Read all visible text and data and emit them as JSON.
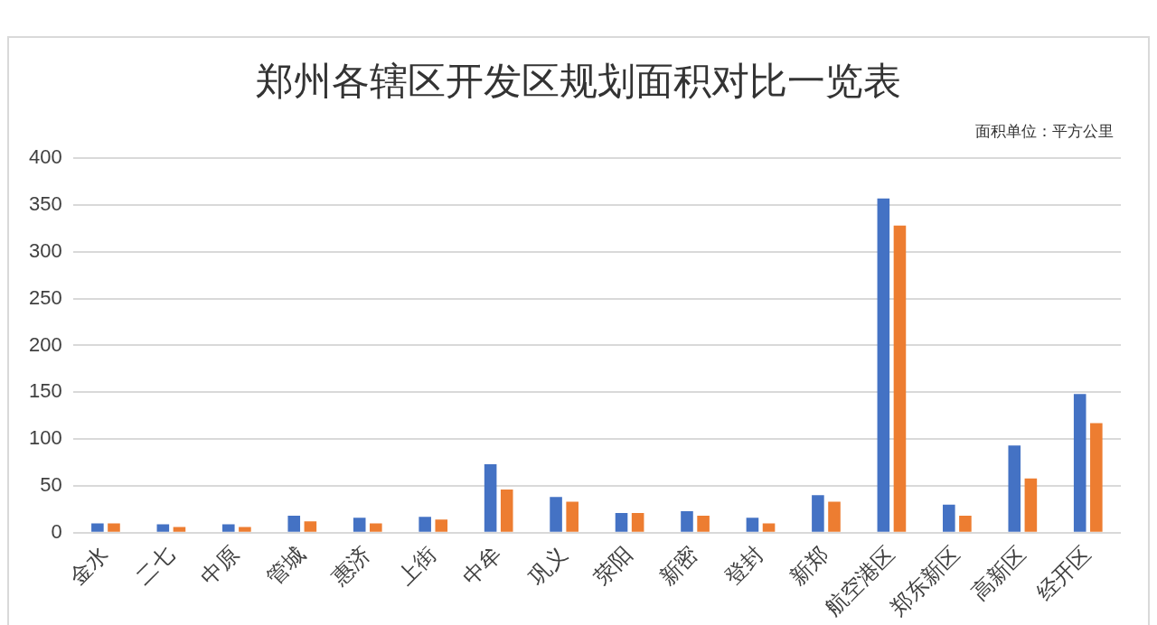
{
  "chart_data": {
    "type": "bar",
    "title": "郑州各辖区开发区规划面积对比一览表",
    "annotations": [
      "面积单位：平方公里"
    ],
    "categories": [
      "金水",
      "二七",
      "中原",
      "管城",
      "惠济",
      "上街",
      "中牟",
      "巩义",
      "荥阳",
      "新密",
      "登封",
      "新郑",
      "航空港区",
      "郑东新区",
      "高新区",
      "经开区"
    ],
    "series": [
      {
        "color": "#4472c4",
        "values": [
          10,
          9,
          9,
          18,
          16,
          17,
          73,
          38,
          21,
          23,
          16,
          40,
          357,
          30,
          93,
          148
        ]
      },
      {
        "color": "#ed7d31",
        "values": [
          10,
          6,
          6,
          12,
          10,
          14,
          46,
          33,
          21,
          18,
          10,
          33,
          328,
          18,
          58,
          117
        ]
      }
    ],
    "ylim": [
      0,
      400
    ],
    "yticks": [
      0,
      50,
      100,
      150,
      200,
      250,
      300,
      350,
      400
    ],
    "grid": "y",
    "legend": false
  }
}
